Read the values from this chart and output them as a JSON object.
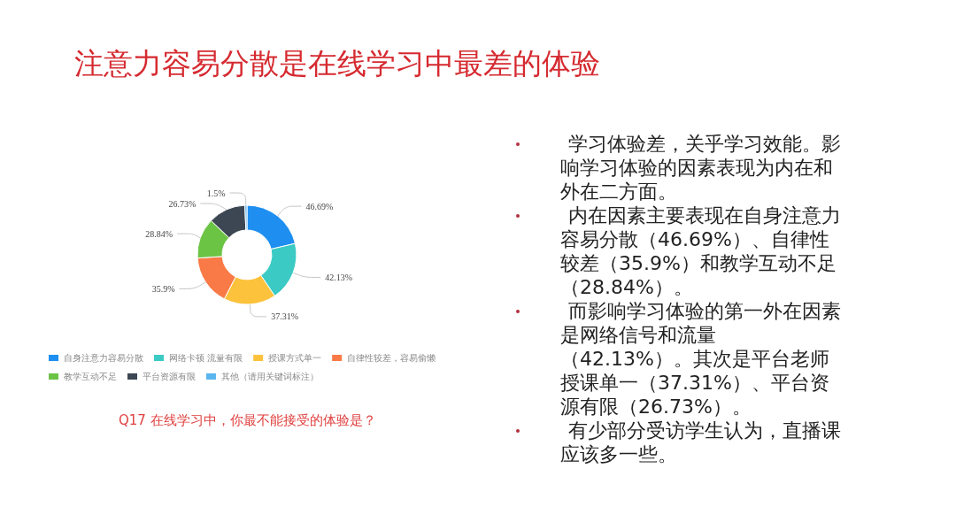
{
  "chart_data": [
    {
      "type": "donut",
      "title": "注意力容易分散是在线学习中最差的体验",
      "categories": [
        "自身注意力容易分散",
        "网络卡顿 流量有限",
        "授课方式单一",
        "自律性较差，容易偷懒",
        "教学互动不足",
        "平台资源有限",
        "其他（请用关键词标注）"
      ],
      "values": [
        46.69,
        42.13,
        37.31,
        35.9,
        28.84,
        26.73,
        1.5
      ],
      "colors": [
        "#1e8ff0",
        "#3ccbc4",
        "#fcc23c",
        "#f97a46",
        "#6cc445",
        "#3c4753",
        "#5cb6ee"
      ],
      "value_labels": [
        "46.69%",
        "42.13%",
        "37.31%",
        "35.9%",
        "28.84%",
        "26.73%",
        "1.5%"
      ],
      "legend": "bottom",
      "annotations": [
        "Q17 在线学习中，你最不能接受的体验是？"
      ]
    },
    {
      "type": "other",
      "annotations": [
        "学习体验差，关乎学习效能。影响学习体验的因素表现为内在和外在二方面。",
        "内在因素主要表现在自身注意力容易分散（46.69%）、自律性较差（35.9%）和教学互动不足（28.84%）。",
        "而影响学习体验的第一外在因素是网络信号和流量（42.13%）。其次是平台老师授课单一（37.31%）、平台资源有限（26.73%）。",
        "有少部分受访学生认为，直播课应该多一些。"
      ]
    }
  ]
}
